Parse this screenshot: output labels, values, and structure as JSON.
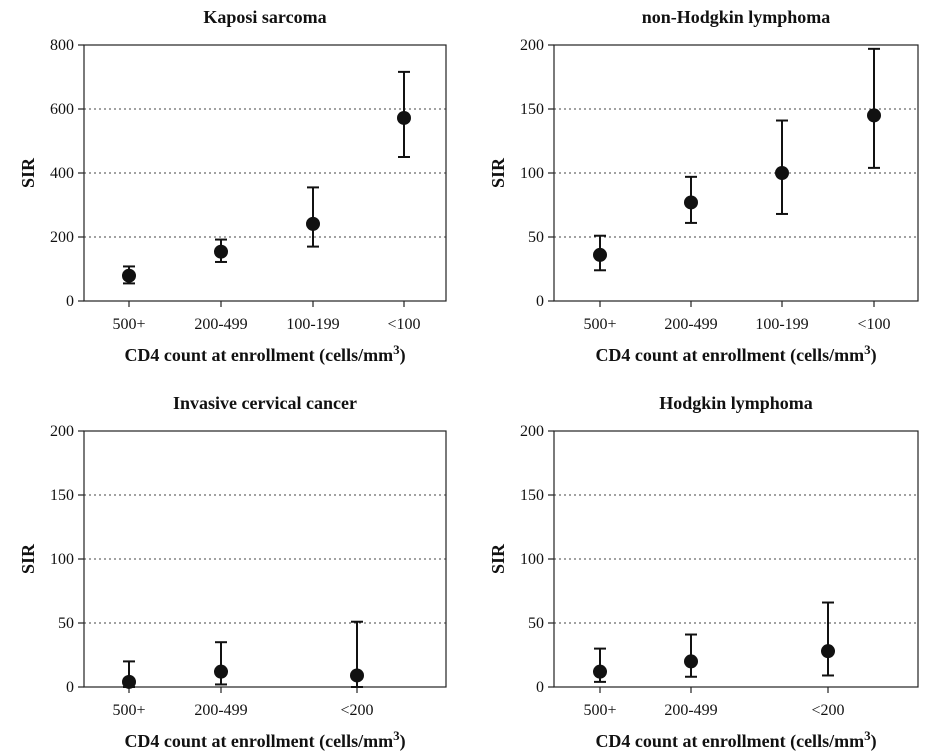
{
  "chart_data": [
    {
      "type": "scatter",
      "title": "Kaposi sarcoma",
      "ylabel": "SIR",
      "xlabel": "CD4 count at enrollment (cells/mm",
      "xlabel_sup": "3",
      "xlabel_end": ")",
      "categories": [
        "500+",
        "200-499",
        "100-199",
        "<100"
      ],
      "values": [
        79,
        154,
        241,
        572
      ],
      "ci_lower": [
        55,
        122,
        170,
        450
      ],
      "ci_upper": [
        108,
        192,
        355,
        716
      ],
      "ylim": [
        0,
        800
      ],
      "yticks": [
        0,
        200,
        400,
        600,
        800
      ],
      "grid": true
    },
    {
      "type": "scatter",
      "title": "non-Hodgkin lymphoma",
      "ylabel": "SIR",
      "xlabel": "CD4 count at enrollment (cells/mm",
      "xlabel_sup": "3",
      "xlabel_end": ")",
      "categories": [
        "500+",
        "200-499",
        "100-199",
        "<100"
      ],
      "values": [
        36,
        77,
        100,
        145
      ],
      "ci_lower": [
        24,
        61,
        68,
        104
      ],
      "ci_upper": [
        51,
        97,
        141,
        197
      ],
      "ylim": [
        0,
        200
      ],
      "yticks": [
        0,
        50,
        100,
        150,
        200
      ],
      "grid": true
    },
    {
      "type": "scatter",
      "title": "Invasive cervical cancer",
      "ylabel": "SIR",
      "xlabel": "CD4 count at enrollment (cells/mm",
      "xlabel_sup": "3",
      "xlabel_end": ")",
      "categories": [
        "500+",
        "200-499",
        "<200"
      ],
      "values": [
        4,
        12,
        9
      ],
      "ci_lower": [
        0,
        2,
        0
      ],
      "ci_upper": [
        20,
        35,
        51
      ],
      "ylim": [
        0,
        200
      ],
      "yticks": [
        0,
        50,
        100,
        150,
        200
      ],
      "grid": true
    },
    {
      "type": "scatter",
      "title": "Hodgkin lymphoma",
      "ylabel": "SIR",
      "xlabel": "CD4 count at enrollment (cells/mm",
      "xlabel_sup": "3",
      "xlabel_end": ")",
      "categories": [
        "500+",
        "200-499",
        "<200"
      ],
      "values": [
        12,
        20,
        28
      ],
      "ci_lower": [
        4,
        8,
        9
      ],
      "ci_upper": [
        30,
        41,
        66
      ],
      "ylim": [
        0,
        200
      ],
      "yticks": [
        0,
        50,
        100,
        150,
        200
      ],
      "grid": true
    }
  ]
}
